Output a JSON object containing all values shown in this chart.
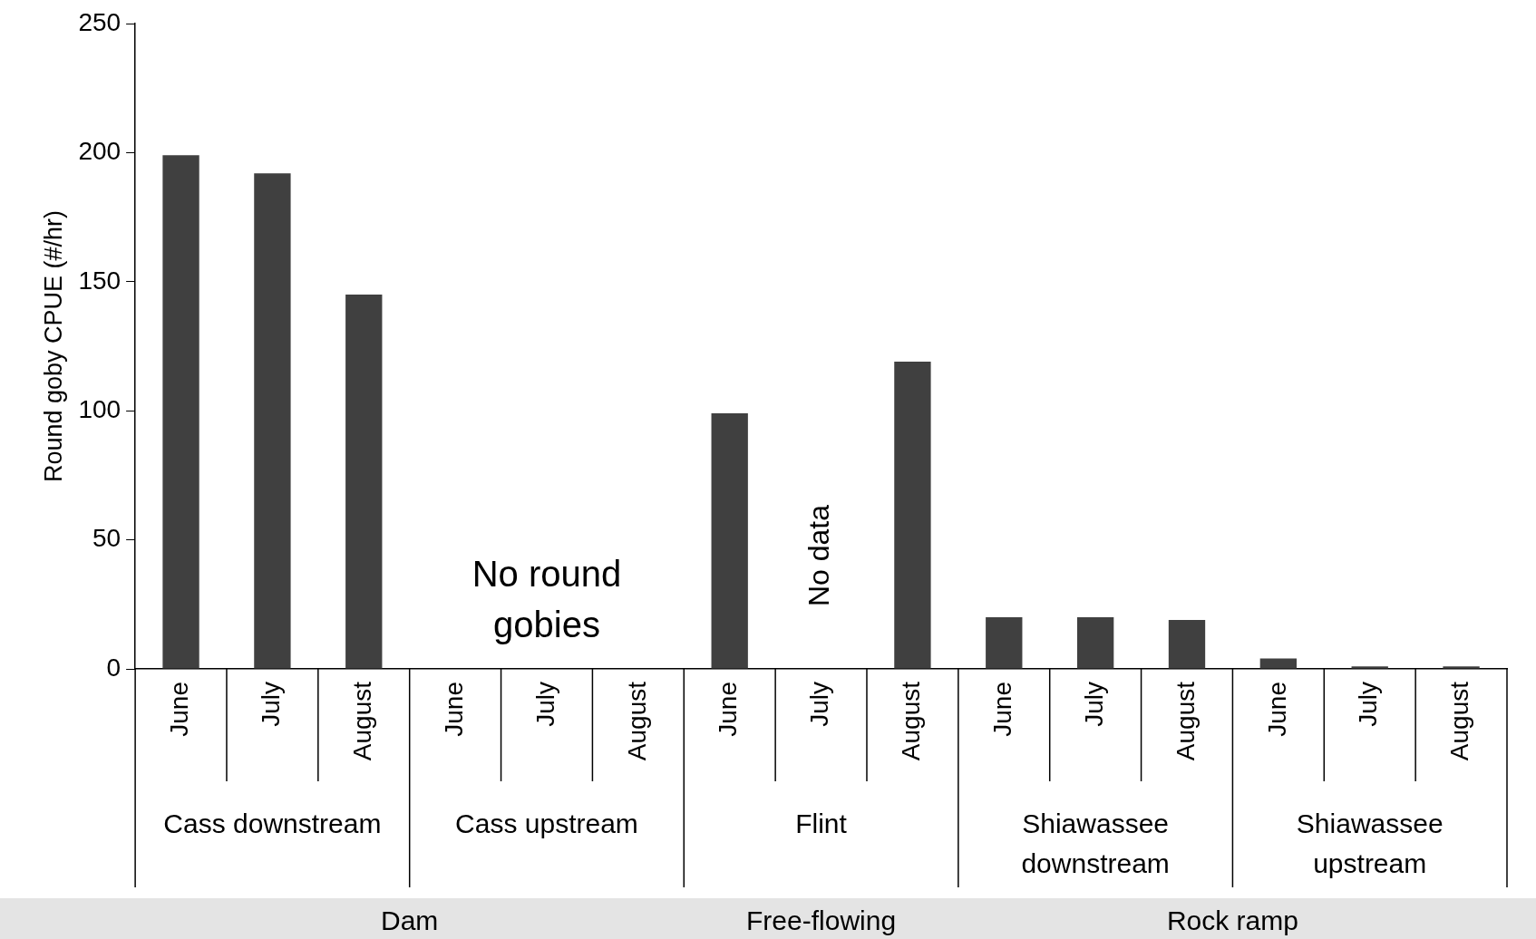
{
  "chart_data": {
    "type": "bar",
    "ylabel": "Round goby CPUE (#/hr)",
    "categories": [
      "June",
      "July",
      "August",
      "June",
      "July",
      "August",
      "June",
      "July",
      "August",
      "June",
      "July",
      "August",
      "June",
      "July",
      "August"
    ],
    "values": [
      199,
      192,
      145,
      0,
      0,
      0,
      99,
      null,
      119,
      20,
      20,
      19,
      4,
      1,
      1
    ],
    "color": "#404040",
    "ylim": [
      0,
      250
    ],
    "yticks": [
      0,
      50,
      100,
      150,
      200,
      250
    ],
    "grid": false,
    "legend": false,
    "annotations": [
      "Cass downstream",
      "Cass upstream",
      "Flint",
      "Shiawassee downstream",
      "Shiawassee upstream",
      "Dam",
      "Free-flowing",
      "Rock ramp",
      "No round gobies",
      "No data"
    ]
  }
}
